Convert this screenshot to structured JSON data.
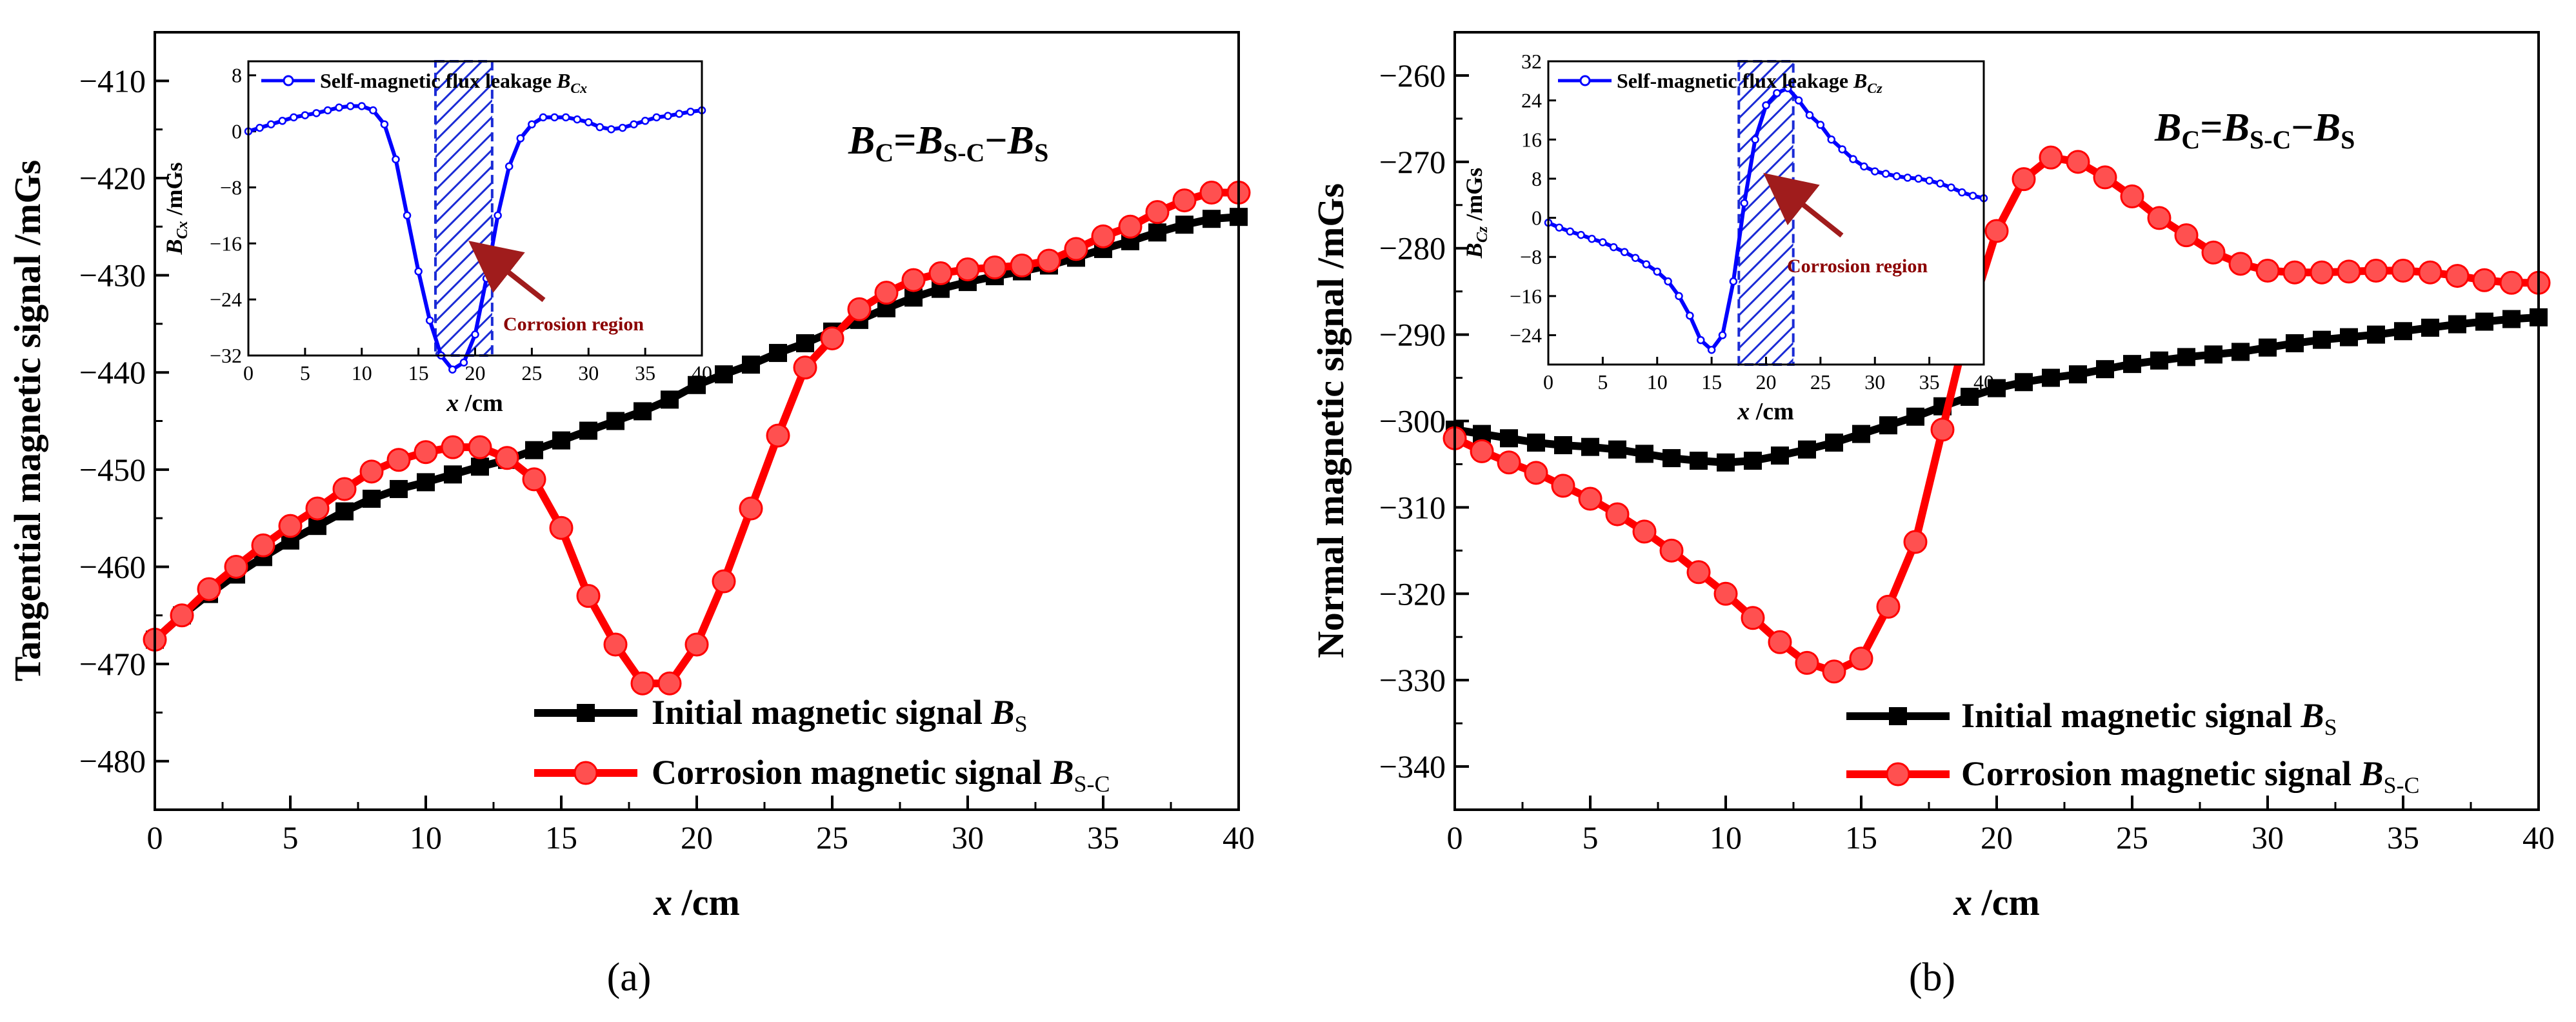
{
  "chart_data": [
    {
      "id": "a",
      "type": "line",
      "panel_label": "(a)",
      "xlabel": "x",
      "xlabel_unit": " /cm",
      "ylabel": "Tangential magnetic signal /mGs",
      "xlim": [
        0,
        40
      ],
      "ylim": [
        -485,
        -405
      ],
      "xticks": [
        0,
        5,
        10,
        15,
        20,
        25,
        30,
        35,
        40
      ],
      "yticks": [
        -480,
        -470,
        -460,
        -450,
        -440,
        -430,
        -420,
        -410
      ],
      "ytick_labels": [
        "−480",
        "−470",
        "−460",
        "−450",
        "−440",
        "−430",
        "−420",
        "−410"
      ],
      "legend_position": "bottom-right",
      "series": [
        {
          "name": "Initial magnetic signal",
          "symbol": "B",
          "subscript": "S",
          "color": "#000000",
          "marker": "square",
          "x": [
            0,
            1,
            2,
            3,
            4,
            5,
            6,
            7,
            8,
            9,
            10,
            11,
            12,
            13,
            14,
            15,
            16,
            17,
            18,
            19,
            20,
            21,
            22,
            23,
            24,
            25,
            26,
            27,
            28,
            29,
            30,
            31,
            32,
            33,
            34,
            35,
            36,
            37,
            38,
            39,
            40
          ],
          "values": [
            -467.5,
            -465,
            -462.8,
            -460.8,
            -459,
            -457.3,
            -455.8,
            -454.3,
            -453,
            -452,
            -451.3,
            -450.5,
            -449.7,
            -449,
            -448,
            -447,
            -446,
            -445,
            -444,
            -442.8,
            -441.3,
            -440.2,
            -439.2,
            -438,
            -437,
            -435.8,
            -434.6,
            -433.4,
            -432.3,
            -431.4,
            -430.7,
            -430.1,
            -429.6,
            -429,
            -428.2,
            -427.3,
            -426.5,
            -425.6,
            -424.8,
            -424.2,
            -424
          ]
        },
        {
          "name": "Corrosion magnetic signal",
          "symbol": "B",
          "subscript": "S-C",
          "color": "#ff0000",
          "marker": "circle",
          "x": [
            0,
            1,
            2,
            3,
            4,
            5,
            6,
            7,
            8,
            9,
            10,
            11,
            12,
            13,
            14,
            15,
            16,
            17,
            18,
            19,
            20,
            21,
            22,
            23,
            24,
            25,
            26,
            27,
            28,
            29,
            30,
            31,
            32,
            33,
            34,
            35,
            36,
            37,
            38,
            39,
            40
          ],
          "values": [
            -467.5,
            -465,
            -462.3,
            -460,
            -457.8,
            -455.8,
            -454,
            -452,
            -450.2,
            -449,
            -448.2,
            -447.7,
            -447.7,
            -448.8,
            -451,
            -456,
            -463,
            -468,
            -472,
            -472,
            -468,
            -461.5,
            -454,
            -446.5,
            -439.5,
            -436.5,
            -433.5,
            -431.8,
            -430.5,
            -429.8,
            -429.4,
            -429.2,
            -429,
            -428.5,
            -427.3,
            -426,
            -425,
            -423.5,
            -422.3,
            -421.5,
            -421.5
          ]
        }
      ],
      "formula": {
        "lhs": "B",
        "lhs_sub": "C",
        "eq": "=",
        "a": "B",
        "a_sub": "S-C",
        "minus": "−",
        "b": "B",
        "b_sub": "S"
      },
      "inset": {
        "series_name": "Self-magnetic flux leakage",
        "symbol": "B",
        "subscript": "Cx",
        "ylabel_symbol": "B",
        "ylabel_sub": "Cx",
        "ylabel_unit": " /mGs",
        "xlabel": "x",
        "xlabel_unit": " /cm",
        "color": "#0000ff",
        "xlim": [
          0,
          40
        ],
        "ylim": [
          -32,
          10
        ],
        "xticks": [
          0,
          5,
          10,
          15,
          20,
          25,
          30,
          35,
          40
        ],
        "yticks": [
          8,
          0,
          -8,
          -16,
          -24,
          -32
        ],
        "ytick_labels": [
          "8",
          "0",
          "−8",
          "−16",
          "−24",
          "−32"
        ],
        "x": [
          0,
          1,
          2,
          3,
          4,
          5,
          6,
          7,
          8,
          9,
          10,
          11,
          12,
          13,
          14,
          15,
          16,
          17,
          18,
          19,
          20,
          21,
          22,
          23,
          24,
          25,
          26,
          27,
          28,
          29,
          30,
          31,
          32,
          33,
          34,
          35,
          36,
          37,
          38,
          39,
          40
        ],
        "values": [
          0,
          0.5,
          1,
          1.5,
          2,
          2.3,
          2.6,
          3,
          3.4,
          3.6,
          3.6,
          3,
          1,
          -4,
          -12,
          -20,
          -27,
          -32,
          -34,
          -33,
          -29,
          -21,
          -12,
          -5,
          -1,
          1,
          2,
          2,
          2,
          1.7,
          1.3,
          0.6,
          0.3,
          0.5,
          1,
          1.5,
          2,
          2.2,
          2.5,
          2.8,
          3
        ],
        "corrosion_region": [
          16.5,
          21.5
        ],
        "annotation": "Corrosion region",
        "annotation_color": "#8b0000"
      }
    },
    {
      "id": "b",
      "type": "line",
      "panel_label": "(b)",
      "xlabel": "x",
      "xlabel_unit": " /cm",
      "ylabel": "Normal magnetic signal /mGs",
      "xlim": [
        0,
        40
      ],
      "ylim": [
        -345,
        -255
      ],
      "xticks": [
        0,
        5,
        10,
        15,
        20,
        25,
        30,
        35,
        40
      ],
      "yticks": [
        -340,
        -330,
        -320,
        -310,
        -300,
        -290,
        -280,
        -270,
        -260
      ],
      "ytick_labels": [
        "−340",
        "−330",
        "−320",
        "−310",
        "−300",
        "−290",
        "−280",
        "−270",
        "−260"
      ],
      "legend_position": "bottom-right",
      "series": [
        {
          "name": "Initial magnetic signal",
          "symbol": "B",
          "subscript": "S",
          "color": "#000000",
          "marker": "square",
          "x": [
            0,
            1,
            2,
            3,
            4,
            5,
            6,
            7,
            8,
            9,
            10,
            11,
            12,
            13,
            14,
            15,
            16,
            17,
            18,
            19,
            20,
            21,
            22,
            23,
            24,
            25,
            26,
            27,
            28,
            29,
            30,
            31,
            32,
            33,
            34,
            35,
            36,
            37,
            38,
            39,
            40
          ],
          "values": [
            -301,
            -301.5,
            -302,
            -302.5,
            -302.8,
            -303,
            -303.3,
            -303.8,
            -304.3,
            -304.6,
            -304.8,
            -304.6,
            -304,
            -303.3,
            -302.5,
            -301.5,
            -300.5,
            -299.5,
            -298.3,
            -297.2,
            -296.2,
            -295.5,
            -295,
            -294.6,
            -294,
            -293.4,
            -293,
            -292.6,
            -292.3,
            -292,
            -291.5,
            -291,
            -290.6,
            -290.3,
            -290,
            -289.6,
            -289.2,
            -288.8,
            -288.5,
            -288.2,
            -288
          ]
        },
        {
          "name": "Corrosion magnetic signal",
          "symbol": "B",
          "subscript": "S-C",
          "color": "#ff0000",
          "marker": "circle",
          "x": [
            0,
            1,
            2,
            3,
            4,
            5,
            6,
            7,
            8,
            9,
            10,
            11,
            12,
            13,
            14,
            15,
            16,
            17,
            18,
            19,
            20,
            21,
            22,
            23,
            24,
            25,
            26,
            27,
            28,
            29,
            30,
            31,
            32,
            33,
            34,
            35,
            36,
            37,
            38,
            39,
            40
          ],
          "values": [
            -302,
            -303.5,
            -304.8,
            -306,
            -307.5,
            -309,
            -310.8,
            -312.8,
            -315,
            -317.5,
            -320,
            -322.8,
            -325.6,
            -328,
            -329,
            -327.5,
            -321.5,
            -314,
            -301,
            -288,
            -278,
            -272,
            -269.5,
            -270,
            -271.8,
            -274,
            -276.5,
            -278.5,
            -280.5,
            -281.8,
            -282.6,
            -282.8,
            -282.8,
            -282.7,
            -282.6,
            -282.6,
            -282.8,
            -283.2,
            -283.7,
            -284,
            -284
          ]
        }
      ],
      "formula": {
        "lhs": "B",
        "lhs_sub": "C",
        "eq": "=",
        "a": "B",
        "a_sub": "S-C",
        "minus": "−",
        "b": "B",
        "b_sub": "S"
      },
      "inset": {
        "series_name": "Self-magnetic flux leakage",
        "symbol": "B",
        "subscript": "Cz",
        "ylabel_symbol": "B",
        "ylabel_sub": "Cz",
        "ylabel_unit": " /mGs",
        "xlabel": "x",
        "xlabel_unit": " /cm",
        "color": "#0000ff",
        "xlim": [
          0,
          40
        ],
        "ylim": [
          -30,
          32
        ],
        "xticks": [
          0,
          5,
          10,
          15,
          20,
          25,
          30,
          35,
          40
        ],
        "yticks": [
          32,
          24,
          16,
          8,
          0,
          -8,
          -16,
          -24
        ],
        "ytick_labels": [
          "32",
          "24",
          "16",
          "8",
          "0",
          "−8",
          "−16",
          "−24"
        ],
        "x": [
          0,
          1,
          2,
          3,
          4,
          5,
          6,
          7,
          8,
          9,
          10,
          11,
          12,
          13,
          14,
          15,
          16,
          17,
          18,
          19,
          20,
          21,
          22,
          23,
          24,
          25,
          26,
          27,
          28,
          29,
          30,
          31,
          32,
          33,
          34,
          35,
          36,
          37,
          38,
          39,
          40
        ],
        "values": [
          -1,
          -2,
          -2.8,
          -3.5,
          -4.3,
          -5,
          -6,
          -7,
          -8.2,
          -9.5,
          -11,
          -13,
          -16,
          -20,
          -25,
          -27,
          -24,
          -13,
          3,
          16,
          23,
          25.5,
          26.5,
          24,
          21,
          19,
          16,
          14,
          12,
          10.5,
          9.5,
          9,
          8.5,
          8.2,
          8,
          7.6,
          7,
          6.2,
          5.2,
          4.5,
          4
        ],
        "corrosion_region": [
          17.5,
          22.5
        ],
        "annotation": "Corrosion region",
        "annotation_color": "#8b0000"
      }
    }
  ]
}
